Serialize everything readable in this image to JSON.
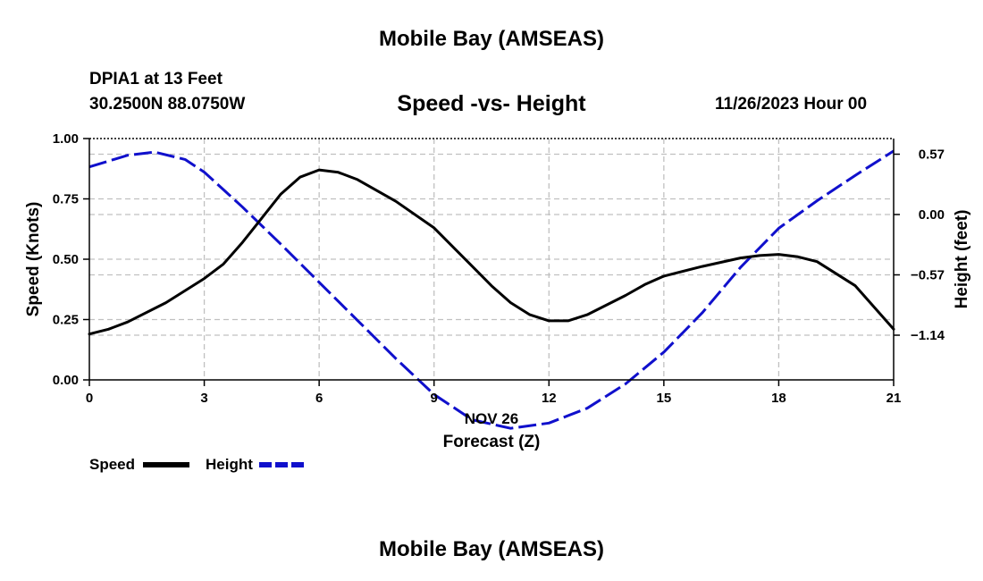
{
  "page": {
    "title_top": "Mobile Bay (AMSEAS)",
    "title_bottom": "Mobile Bay (AMSEAS)",
    "station": "DPIA1 at 13 Feet",
    "coords": "30.2500N  88.0750W",
    "datetime": "11/26/2023 Hour 00"
  },
  "chart_data": {
    "type": "line",
    "title": "Speed -vs- Height",
    "xlabel_line1": "NOV 26",
    "xlabel_line2": "Forecast (Z)",
    "ylabel_left": "Speed (Knots)",
    "ylabel_right": "Height (feet)",
    "xlim": [
      0,
      21
    ],
    "x_ticks": [
      "0",
      "3",
      "6",
      "9",
      "12",
      "15",
      "18",
      "21"
    ],
    "y_left_lim": [
      0,
      1
    ],
    "y_left_ticks": [
      "0.00",
      "0.25",
      "0.50",
      "0.75",
      "1.00"
    ],
    "y_right_ticks": [
      "0.57",
      "0.00",
      "−0.57",
      "−1.14"
    ],
    "y_right_tick_values": [
      0.57,
      0.0,
      -0.57,
      -1.14
    ],
    "legend": {
      "speed": "Speed",
      "height": "Height"
    },
    "colors": {
      "speed": "#000000",
      "height": "#1010cc",
      "grid": "#c0c0c0"
    },
    "series": [
      {
        "name": "Speed",
        "x": [
          0,
          0.5,
          1,
          2,
          3,
          3.5,
          4,
          4.5,
          5,
          5.5,
          6,
          6.5,
          7,
          8,
          9,
          10,
          10.5,
          11,
          11.5,
          12,
          12.5,
          13,
          14,
          14.5,
          15,
          16,
          17,
          17.5,
          18,
          18.5,
          19,
          20,
          21
        ],
        "values": [
          0.19,
          0.21,
          0.24,
          0.32,
          0.42,
          0.48,
          0.57,
          0.67,
          0.77,
          0.84,
          0.87,
          0.86,
          0.83,
          0.74,
          0.63,
          0.47,
          0.39,
          0.32,
          0.27,
          0.245,
          0.245,
          0.27,
          0.35,
          0.395,
          0.43,
          0.47,
          0.505,
          0.515,
          0.52,
          0.51,
          0.49,
          0.39,
          0.21
        ]
      },
      {
        "name": "Height",
        "x": [
          0,
          1,
          1.7,
          2.5,
          3,
          4,
          5,
          6,
          7,
          8,
          9,
          10,
          11,
          12,
          13,
          14,
          15,
          16,
          17,
          18,
          19,
          20,
          21
        ],
        "values": [
          0.45,
          0.56,
          0.59,
          0.52,
          0.4,
          0.07,
          -0.28,
          -0.64,
          -1.0,
          -1.36,
          -1.7,
          -1.94,
          -2.02,
          -1.97,
          -1.83,
          -1.6,
          -1.3,
          -0.93,
          -0.5,
          -0.13,
          0.13,
          0.37,
          0.6
        ]
      }
    ]
  }
}
